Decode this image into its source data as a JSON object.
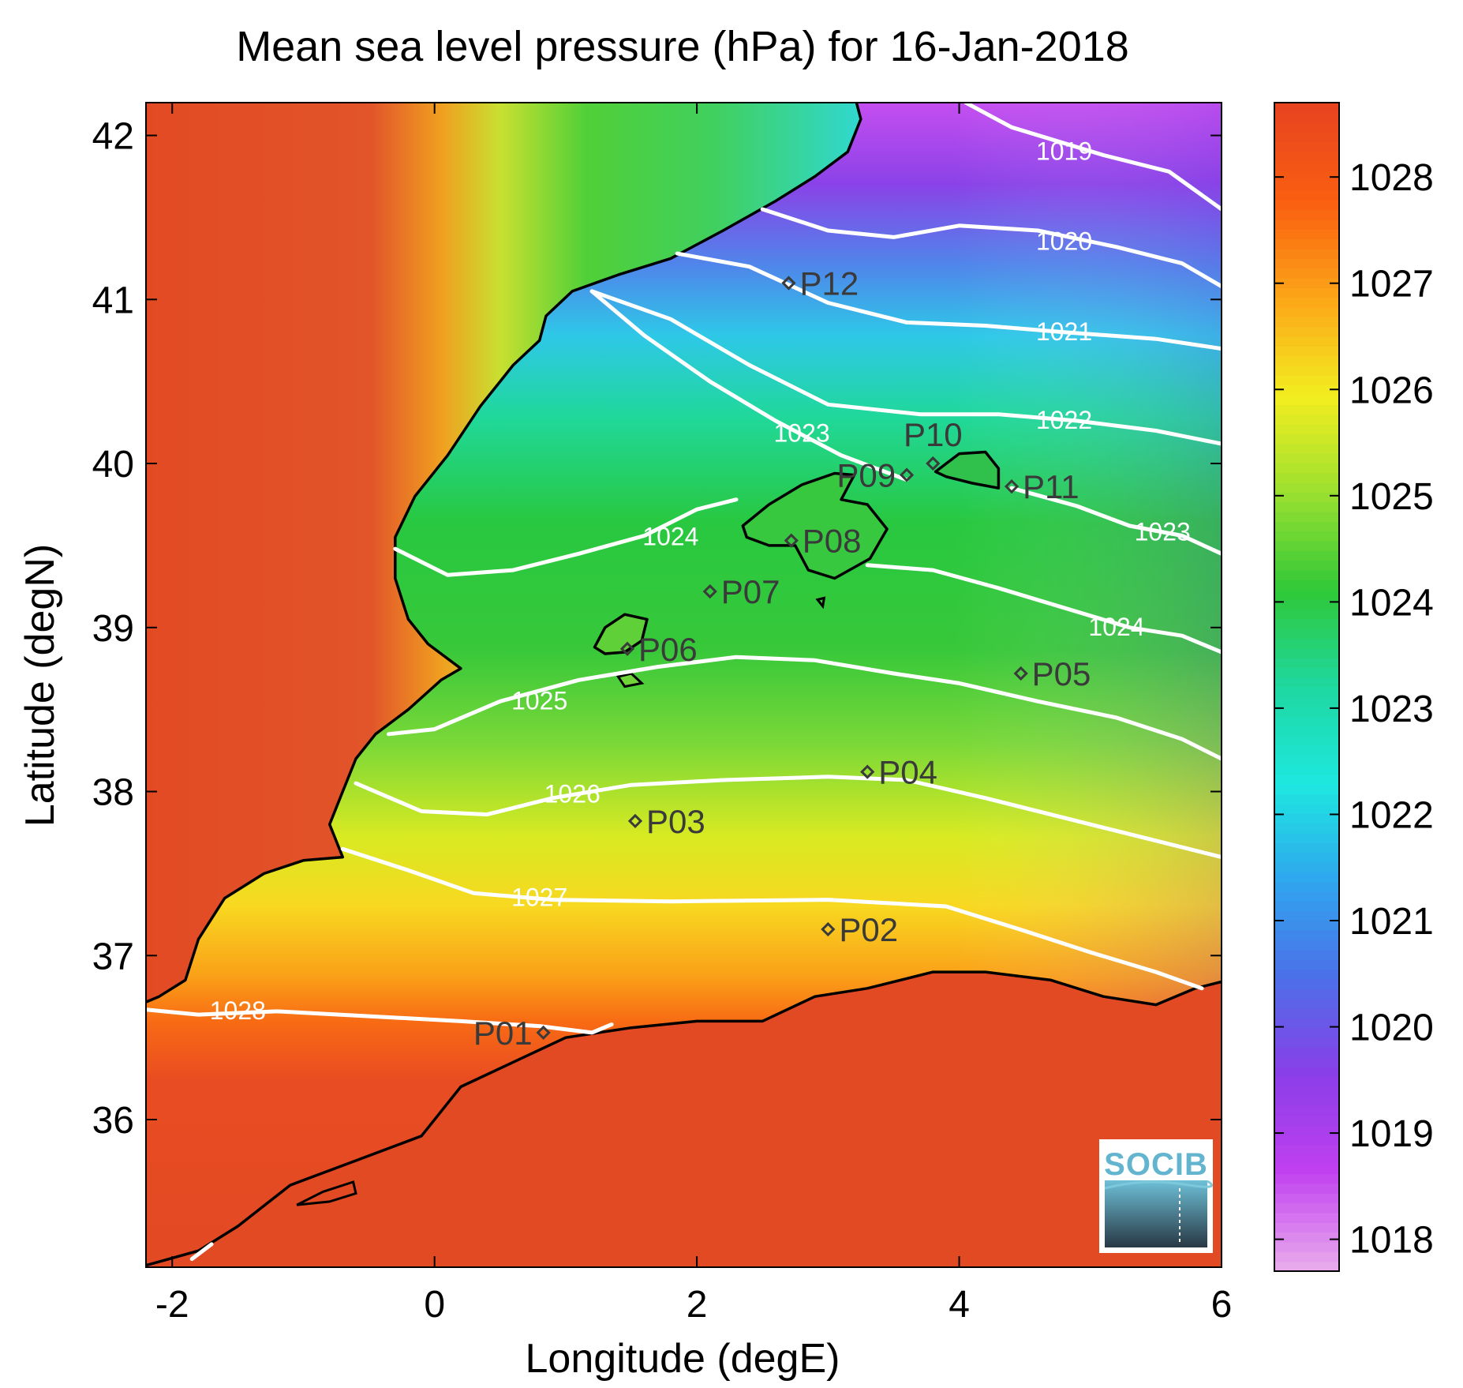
{
  "title": "Mean sea level pressure (hPa) for 16-Jan-2018",
  "x_axis": {
    "label": "Longitude (degE)",
    "range": [
      -2.2,
      6.0
    ],
    "ticks": [
      -2,
      0,
      2,
      4,
      6
    ],
    "tick_labels": [
      "-2",
      "0",
      "2",
      "4",
      "6"
    ]
  },
  "y_axis": {
    "label": "Latitude (degN)",
    "range": [
      35.1,
      42.2
    ],
    "ticks": [
      36,
      37,
      38,
      39,
      40,
      41,
      42
    ],
    "tick_labels": [
      "36",
      "37",
      "38",
      "39",
      "40",
      "41",
      "42"
    ]
  },
  "colorbar": {
    "range": [
      1017.7,
      1028.7
    ],
    "ticks": [
      1018,
      1019,
      1020,
      1021,
      1022,
      1023,
      1024,
      1025,
      1026,
      1027,
      1028
    ],
    "tick_labels": [
      "1018",
      "1019",
      "1020",
      "1021",
      "1022",
      "1023",
      "1024",
      "1025",
      "1026",
      "1027",
      "1028"
    ],
    "colors": [
      "#e8a8ec",
      "#c040f0",
      "#8a3ee8",
      "#4c70e8",
      "#2fa6ee",
      "#1ee8e0",
      "#1ed8a0",
      "#30c838",
      "#9ae030",
      "#f2ee20",
      "#fca818",
      "#fa6010",
      "#e84420"
    ]
  },
  "map": {
    "land_color": "#e24a24",
    "coastline_color": "#000000",
    "contour_color": "#ffffff",
    "marker_color": "#3a3a3a"
  },
  "contours": [
    {
      "label": "1019",
      "value": 1019,
      "label_at": [
        4.8,
        41.9
      ],
      "points": [
        [
          4.05,
          42.2
        ],
        [
          4.4,
          42.05
        ],
        [
          5.1,
          41.88
        ],
        [
          5.6,
          41.78
        ],
        [
          6.0,
          41.55
        ]
      ]
    },
    {
      "label": "1020",
      "value": 1020,
      "label_at": [
        4.8,
        41.35
      ],
      "points": [
        [
          2.5,
          41.55
        ],
        [
          3.0,
          41.42
        ],
        [
          3.5,
          41.38
        ],
        [
          4.0,
          41.45
        ],
        [
          4.6,
          41.42
        ],
        [
          5.2,
          41.32
        ],
        [
          5.7,
          41.22
        ],
        [
          6.0,
          41.08
        ]
      ]
    },
    {
      "label": "1021",
      "value": 1021,
      "label_at": [
        4.8,
        40.8
      ],
      "points": [
        [
          1.85,
          41.28
        ],
        [
          2.4,
          41.2
        ],
        [
          3.0,
          40.98
        ],
        [
          3.6,
          40.86
        ],
        [
          4.2,
          40.84
        ],
        [
          4.8,
          40.8
        ],
        [
          5.5,
          40.76
        ],
        [
          6.0,
          40.7
        ]
      ]
    },
    {
      "label": "1022",
      "value": 1022,
      "label_at": [
        4.8,
        40.26
      ],
      "points": [
        [
          1.2,
          41.05
        ],
        [
          1.8,
          40.88
        ],
        [
          2.4,
          40.6
        ],
        [
          3.0,
          40.36
        ],
        [
          3.7,
          40.3
        ],
        [
          4.3,
          40.3
        ],
        [
          4.9,
          40.26
        ],
        [
          5.5,
          40.2
        ],
        [
          6.0,
          40.12
        ]
      ]
    },
    {
      "label": "1023",
      "value": 1023,
      "label_at": [
        2.8,
        40.18
      ],
      "points": [
        [
          1.2,
          41.05
        ],
        [
          1.6,
          40.78
        ],
        [
          2.1,
          40.5
        ],
        [
          2.6,
          40.26
        ],
        [
          3.1,
          40.05
        ],
        [
          3.6,
          39.9
        ]
      ]
    },
    {
      "label": "1023",
      "value": 1023,
      "label_at": [
        5.55,
        39.58
      ],
      "points": [
        [
          4.4,
          39.85
        ],
        [
          4.9,
          39.74
        ],
        [
          5.3,
          39.62
        ],
        [
          5.7,
          39.56
        ],
        [
          6.0,
          39.45
        ]
      ]
    },
    {
      "label": "1024",
      "value": 1024,
      "label_at": [
        1.8,
        39.55
      ],
      "points": [
        [
          -0.3,
          39.48
        ],
        [
          0.1,
          39.32
        ],
        [
          0.6,
          39.35
        ],
        [
          1.1,
          39.45
        ],
        [
          1.6,
          39.56
        ],
        [
          2.0,
          39.72
        ],
        [
          2.3,
          39.78
        ]
      ]
    },
    {
      "label": "1024",
      "value": 1024,
      "label_at": [
        5.2,
        39.0
      ],
      "points": [
        [
          3.3,
          39.38
        ],
        [
          3.8,
          39.35
        ],
        [
          4.3,
          39.24
        ],
        [
          4.8,
          39.12
        ],
        [
          5.3,
          39.0
        ],
        [
          5.7,
          38.95
        ],
        [
          6.0,
          38.85
        ]
      ]
    },
    {
      "label": "1025",
      "value": 1025,
      "label_at": [
        0.8,
        38.55
      ],
      "points": [
        [
          -0.35,
          38.35
        ],
        [
          0.0,
          38.38
        ],
        [
          0.5,
          38.55
        ],
        [
          1.1,
          38.68
        ],
        [
          1.7,
          38.76
        ],
        [
          2.3,
          38.82
        ],
        [
          2.9,
          38.8
        ],
        [
          3.5,
          38.72
        ],
        [
          4.0,
          38.66
        ],
        [
          4.6,
          38.55
        ],
        [
          5.2,
          38.45
        ],
        [
          5.7,
          38.32
        ],
        [
          6.0,
          38.2
        ]
      ]
    },
    {
      "label": "1026",
      "value": 1026,
      "label_at": [
        1.05,
        37.98
      ],
      "points": [
        [
          -0.6,
          38.05
        ],
        [
          -0.1,
          37.88
        ],
        [
          0.4,
          37.86
        ],
        [
          0.9,
          37.96
        ],
        [
          1.5,
          38.04
        ],
        [
          2.2,
          38.07
        ],
        [
          3.0,
          38.09
        ],
        [
          3.6,
          38.07
        ],
        [
          4.2,
          37.96
        ],
        [
          4.8,
          37.84
        ],
        [
          5.4,
          37.72
        ],
        [
          6.0,
          37.6
        ]
      ]
    },
    {
      "label": "1027",
      "value": 1027,
      "label_at": [
        0.8,
        37.35
      ],
      "points": [
        [
          -0.7,
          37.65
        ],
        [
          -0.2,
          37.52
        ],
        [
          0.3,
          37.38
        ],
        [
          0.9,
          37.34
        ],
        [
          1.8,
          37.33
        ],
        [
          3.0,
          37.34
        ],
        [
          3.9,
          37.3
        ],
        [
          4.5,
          37.15
        ],
        [
          5.0,
          37.02
        ],
        [
          5.5,
          36.9
        ],
        [
          5.85,
          36.8
        ]
      ]
    },
    {
      "label": "1028",
      "value": 1028,
      "label_at": [
        -1.5,
        36.66
      ],
      "points": [
        [
          -2.2,
          36.67
        ],
        [
          -1.8,
          36.64
        ],
        [
          -1.2,
          36.66
        ],
        [
          -0.5,
          36.63
        ],
        [
          0.2,
          36.6
        ],
        [
          0.8,
          36.57
        ],
        [
          1.2,
          36.53
        ],
        [
          1.35,
          36.58
        ]
      ]
    },
    {
      "label": "",
      "value": 1028,
      "label_at": null,
      "points": [
        [
          -1.85,
          35.15
        ],
        [
          -1.7,
          35.24
        ]
      ]
    }
  ],
  "stations": [
    {
      "label": "P01",
      "lon": 0.83,
      "lat": 36.53,
      "label_side": "left"
    },
    {
      "label": "P02",
      "lon": 3.0,
      "lat": 37.16,
      "label_side": "right"
    },
    {
      "label": "P03",
      "lon": 1.53,
      "lat": 37.82,
      "label_side": "right"
    },
    {
      "label": "P04",
      "lon": 3.3,
      "lat": 38.12,
      "label_side": "right"
    },
    {
      "label": "P05",
      "lon": 4.47,
      "lat": 38.72,
      "label_side": "right"
    },
    {
      "label": "P06",
      "lon": 1.47,
      "lat": 38.87,
      "label_side": "right"
    },
    {
      "label": "P07",
      "lon": 2.1,
      "lat": 39.22,
      "label_side": "right"
    },
    {
      "label": "P08",
      "lon": 2.72,
      "lat": 39.53,
      "label_side": "right"
    },
    {
      "label": "P09",
      "lon": 3.6,
      "lat": 39.93,
      "label_side": "left"
    },
    {
      "label": "P10",
      "lon": 3.8,
      "lat": 40.0,
      "label_side": "above"
    },
    {
      "label": "P11",
      "lon": 4.4,
      "lat": 39.86,
      "label_side": "right"
    },
    {
      "label": "P12",
      "lon": 2.7,
      "lat": 41.1,
      "label_side": "right"
    }
  ],
  "logo": {
    "text": "SOCIB"
  }
}
